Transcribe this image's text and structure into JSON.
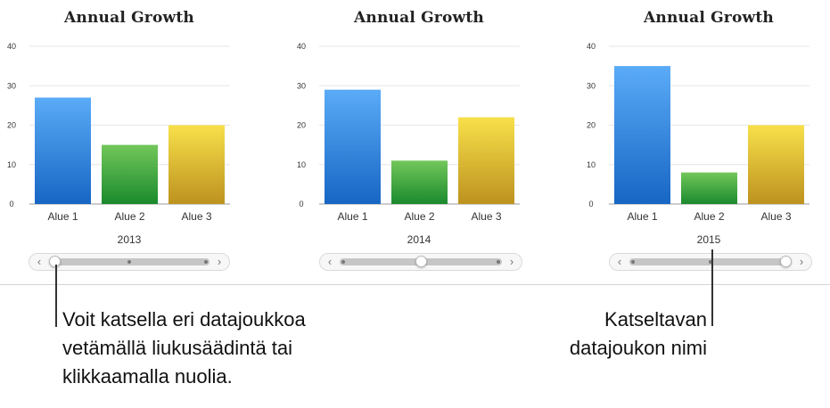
{
  "chart_data": [
    {
      "type": "bar",
      "title": "Annual Growth",
      "dataset_label": "2013",
      "categories": [
        "Alue 1",
        "Alue 2",
        "Alue 3"
      ],
      "values": [
        27,
        15,
        20
      ],
      "ylim": [
        0,
        40
      ],
      "yticks": [
        0,
        10,
        20,
        30,
        40
      ],
      "grid": true,
      "legend": "none"
    },
    {
      "type": "bar",
      "title": "Annual Growth",
      "dataset_label": "2014",
      "categories": [
        "Alue 1",
        "Alue 2",
        "Alue 3"
      ],
      "values": [
        29,
        11,
        22
      ],
      "ylim": [
        0,
        40
      ],
      "yticks": [
        0,
        10,
        20,
        30,
        40
      ],
      "grid": true,
      "legend": "none"
    },
    {
      "type": "bar",
      "title": "Annual Growth",
      "dataset_label": "2015",
      "categories": [
        "Alue 1",
        "Alue 2",
        "Alue 3"
      ],
      "values": [
        35,
        8,
        20
      ],
      "ylim": [
        0,
        40
      ],
      "yticks": [
        0,
        10,
        20,
        30,
        40
      ],
      "grid": true,
      "legend": "none"
    }
  ],
  "colors": {
    "Alue 1": [
      "#5aabf7",
      "#1766c4"
    ],
    "Alue 2": [
      "#72c75a",
      "#1a8a2d"
    ],
    "Alue 3": [
      "#f8e04a",
      "#bd921f"
    ]
  },
  "sliders": [
    {
      "position": 0.0,
      "left_arrow": "chevron-left-icon",
      "right_arrow": "chevron-right-icon"
    },
    {
      "position": 0.5,
      "left_arrow": "chevron-left-icon",
      "right_arrow": "chevron-right-icon"
    },
    {
      "position": 1.0,
      "left_arrow": "chevron-left-icon",
      "right_arrow": "chevron-right-icon"
    }
  ],
  "callouts": {
    "slider": "Voit katsella eri datajoukkoa vetämällä liukusäädintä tai klikkaamalla nuolia.",
    "slider_lines": [
      "Voit katsella eri datajoukkoa",
      "vetämällä liukusäädintä tai",
      "klikkaamalla nuolia."
    ],
    "dataset_name": "Katseltavan datajoukon nimi",
    "dataset_name_lines": [
      "Katseltavan",
      "datajoukon nimi"
    ]
  }
}
